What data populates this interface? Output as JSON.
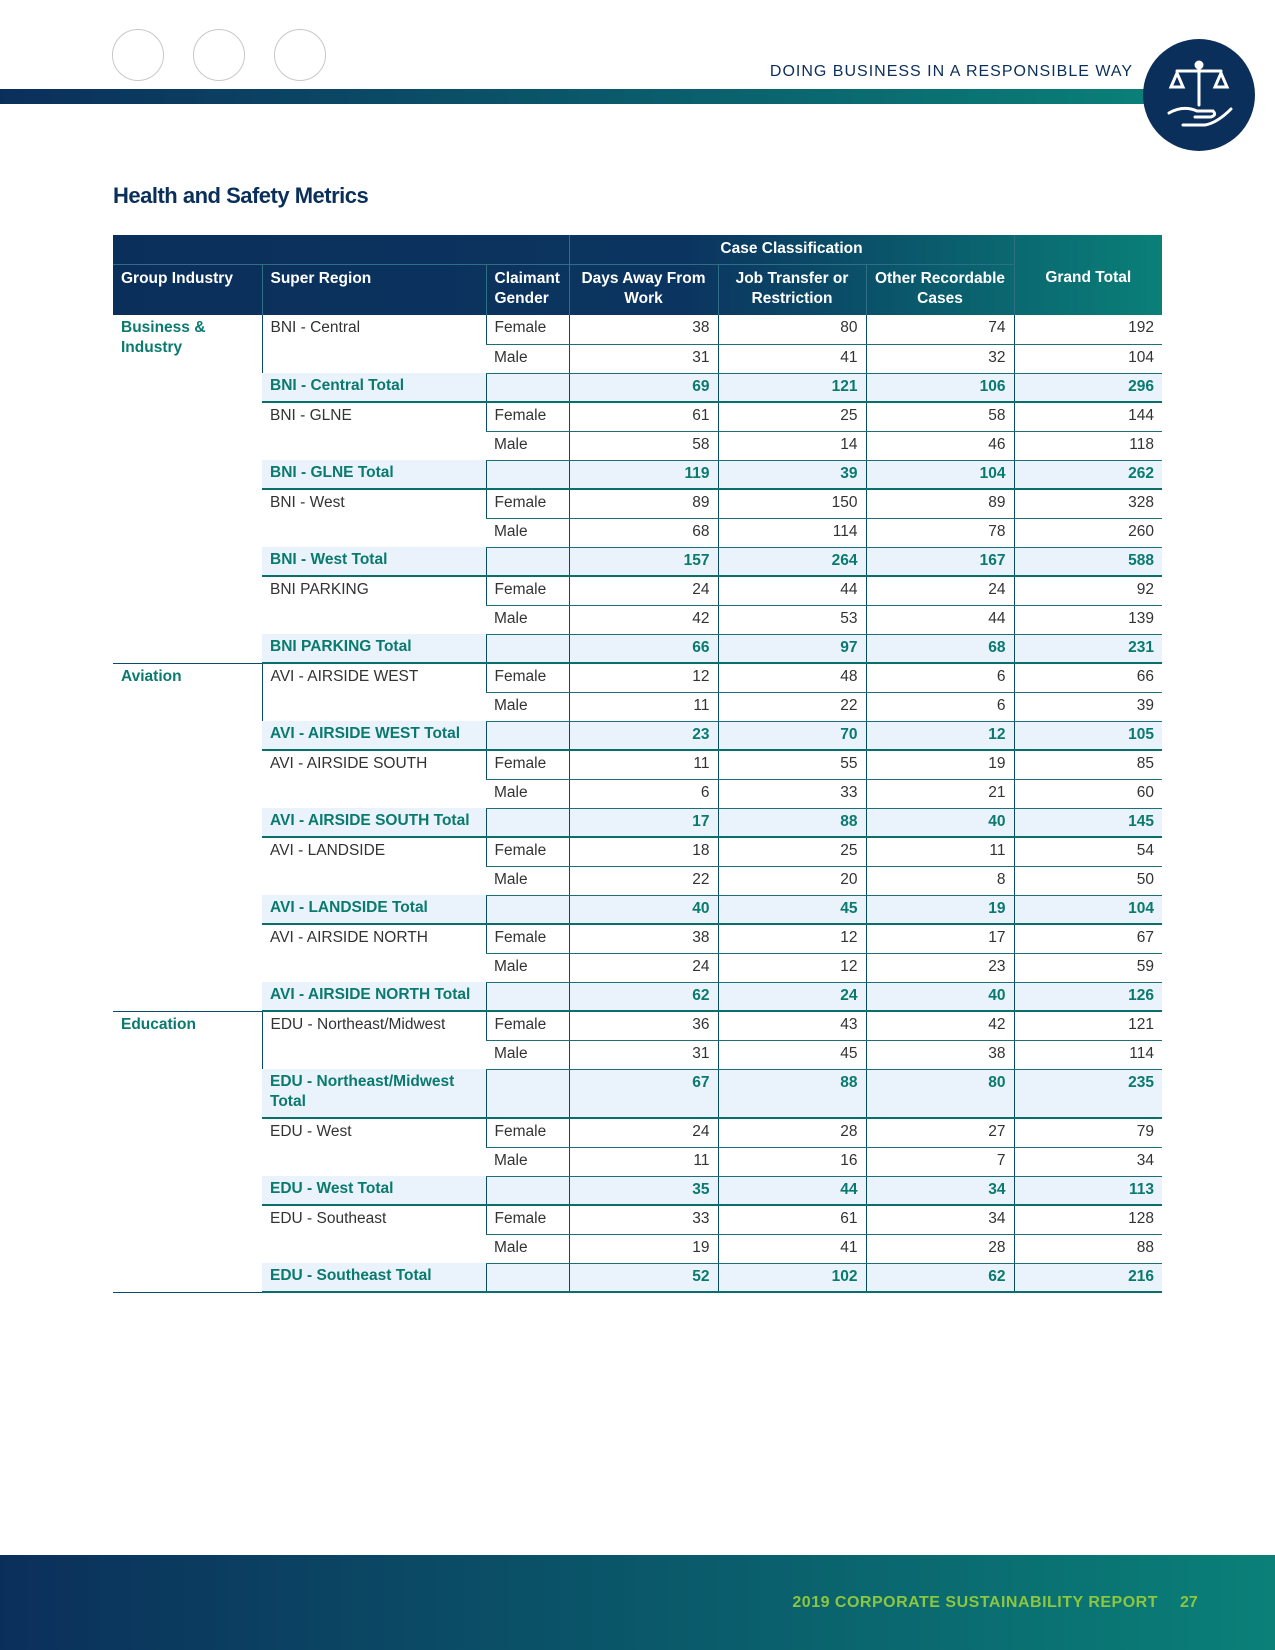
{
  "header": {
    "section": "DOING BUSINESS IN A RESPONSIBLE WAY"
  },
  "title": "Health and Safety Metrics",
  "table": {
    "span_header": "Case Classification",
    "columns": [
      "Group Industry",
      "Super Region",
      "Claimant Gender",
      "Days Away From Work",
      "Job Transfer or Restriction",
      "Other Recordable Cases",
      "Grand Total"
    ],
    "groups": [
      {
        "name": "Business & Industry",
        "regions": [
          {
            "name": "BNI - Central",
            "rows": [
              {
                "gender": "Female",
                "values": [
                  38,
                  80,
                  74,
                  192
                ]
              },
              {
                "gender": "Male",
                "values": [
                  31,
                  41,
                  32,
                  104
                ]
              }
            ],
            "total": {
              "label": "BNI - Central Total",
              "values": [
                69,
                121,
                106,
                296
              ]
            }
          },
          {
            "name": "BNI - GLNE",
            "rows": [
              {
                "gender": "Female",
                "values": [
                  61,
                  25,
                  58,
                  144
                ]
              },
              {
                "gender": "Male",
                "values": [
                  58,
                  14,
                  46,
                  118
                ]
              }
            ],
            "total": {
              "label": "BNI - GLNE Total",
              "values": [
                119,
                39,
                104,
                262
              ]
            }
          },
          {
            "name": "BNI - West",
            "rows": [
              {
                "gender": "Female",
                "values": [
                  89,
                  150,
                  89,
                  328
                ]
              },
              {
                "gender": "Male",
                "values": [
                  68,
                  114,
                  78,
                  260
                ]
              }
            ],
            "total": {
              "label": "BNI - West Total",
              "values": [
                157,
                264,
                167,
                588
              ]
            }
          },
          {
            "name": "BNI PARKING",
            "rows": [
              {
                "gender": "Female",
                "values": [
                  24,
                  44,
                  24,
                  92
                ]
              },
              {
                "gender": "Male",
                "values": [
                  42,
                  53,
                  44,
                  139
                ]
              }
            ],
            "total": {
              "label": "BNI PARKING Total",
              "values": [
                66,
                97,
                68,
                231
              ]
            }
          }
        ]
      },
      {
        "name": "Aviation",
        "regions": [
          {
            "name": "AVI - AIRSIDE WEST",
            "rows": [
              {
                "gender": "Female",
                "values": [
                  12,
                  48,
                  6,
                  66
                ]
              },
              {
                "gender": "Male",
                "values": [
                  11,
                  22,
                  6,
                  39
                ]
              }
            ],
            "total": {
              "label": "AVI - AIRSIDE WEST Total",
              "values": [
                23,
                70,
                12,
                105
              ]
            }
          },
          {
            "name": "AVI - AIRSIDE SOUTH",
            "rows": [
              {
                "gender": "Female",
                "values": [
                  11,
                  55,
                  19,
                  85
                ]
              },
              {
                "gender": "Male",
                "values": [
                  6,
                  33,
                  21,
                  60
                ]
              }
            ],
            "total": {
              "label": "AVI - AIRSIDE SOUTH Total",
              "values": [
                17,
                88,
                40,
                145
              ]
            }
          },
          {
            "name": "AVI - LANDSIDE",
            "rows": [
              {
                "gender": "Female",
                "values": [
                  18,
                  25,
                  11,
                  54
                ]
              },
              {
                "gender": "Male",
                "values": [
                  22,
                  20,
                  8,
                  50
                ]
              }
            ],
            "total": {
              "label": "AVI - LANDSIDE Total",
              "values": [
                40,
                45,
                19,
                104
              ]
            }
          },
          {
            "name": "AVI - AIRSIDE NORTH",
            "rows": [
              {
                "gender": "Female",
                "values": [
                  38,
                  12,
                  17,
                  67
                ]
              },
              {
                "gender": "Male",
                "values": [
                  24,
                  12,
                  23,
                  59
                ]
              }
            ],
            "total": {
              "label": "AVI - AIRSIDE NORTH Total",
              "values": [
                62,
                24,
                40,
                126
              ]
            }
          }
        ]
      },
      {
        "name": "Education",
        "regions": [
          {
            "name": "EDU - Northeast/Midwest",
            "rows": [
              {
                "gender": "Female",
                "values": [
                  36,
                  43,
                  42,
                  121
                ]
              },
              {
                "gender": "Male",
                "values": [
                  31,
                  45,
                  38,
                  114
                ]
              }
            ],
            "total": {
              "label": "EDU - Northeast/Midwest Total",
              "values": [
                67,
                88,
                80,
                235
              ]
            }
          },
          {
            "name": "EDU - West",
            "rows": [
              {
                "gender": "Female",
                "values": [
                  24,
                  28,
                  27,
                  79
                ]
              },
              {
                "gender": "Male",
                "values": [
                  11,
                  16,
                  7,
                  34
                ]
              }
            ],
            "total": {
              "label": "EDU - West Total",
              "values": [
                35,
                44,
                34,
                113
              ]
            }
          },
          {
            "name": "EDU - Southeast",
            "rows": [
              {
                "gender": "Female",
                "values": [
                  33,
                  61,
                  34,
                  128
                ]
              },
              {
                "gender": "Male",
                "values": [
                  19,
                  41,
                  28,
                  88
                ]
              }
            ],
            "total": {
              "label": "EDU - Southeast Total",
              "values": [
                52,
                102,
                62,
                216
              ]
            }
          }
        ]
      }
    ]
  },
  "footer": {
    "report": "2019 CORPORATE SUSTAINABILITY REPORT",
    "page": "27"
  }
}
